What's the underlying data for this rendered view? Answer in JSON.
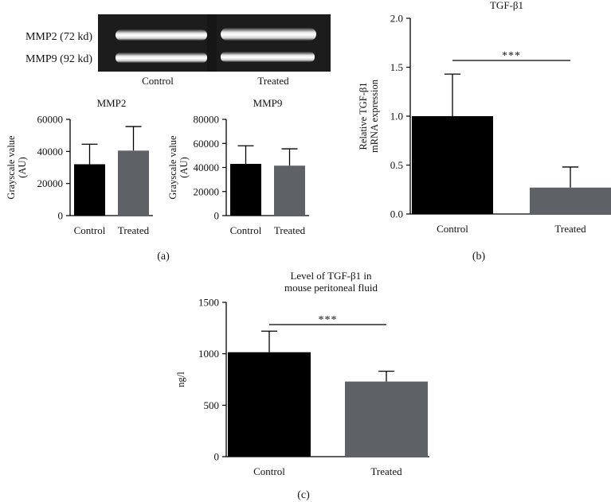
{
  "gel": {
    "band_labels": [
      "MMP2 (72 kd)",
      "MMP9 (92 kd)"
    ],
    "lane_labels": [
      "Control",
      "Treated"
    ]
  },
  "panel_labels": {
    "a": "(a)",
    "b": "(b)",
    "c": "(c)"
  },
  "colors": {
    "control": "#000000",
    "treated": "#5e6266",
    "axis": "#000000"
  },
  "chart_data": [
    {
      "id": "mmp2",
      "type": "bar",
      "title": "MMP2",
      "ylabel_lines": [
        "Grayscale value",
        "(AU)"
      ],
      "categories": [
        "Control",
        "Treated"
      ],
      "values": [
        32000,
        40500
      ],
      "errors": [
        12500,
        15000
      ],
      "ylim": [
        0,
        60000
      ],
      "yticks": [
        0,
        20000,
        40000,
        60000
      ],
      "significance": ""
    },
    {
      "id": "mmp9",
      "type": "bar",
      "title": "MMP9",
      "ylabel_lines": [
        "Grayscale value",
        "(AU)"
      ],
      "categories": [
        "Control",
        "Treated"
      ],
      "values": [
        43000,
        41500
      ],
      "errors": [
        15000,
        14000
      ],
      "ylim": [
        0,
        80000
      ],
      "yticks": [
        0,
        20000,
        40000,
        60000,
        80000
      ],
      "significance": ""
    },
    {
      "id": "tgf_mrna",
      "type": "bar",
      "title": "TGF-β1",
      "ylabel_lines": [
        "Relative TGF-β1",
        "mRNA expression"
      ],
      "categories": [
        "Control",
        "Treated"
      ],
      "values": [
        1.0,
        0.27
      ],
      "errors": [
        0.43,
        0.21
      ],
      "ylim": [
        0,
        2.0
      ],
      "yticks": [
        0.0,
        0.5,
        1.0,
        1.5,
        2.0
      ],
      "significance": "***"
    },
    {
      "id": "tgf_fluid",
      "type": "bar",
      "title_lines": [
        "Level of TGF-β1 in",
        "mouse peritoneal fluid"
      ],
      "ylabel_lines": [
        "ng/l"
      ],
      "categories": [
        "Control",
        "Treated"
      ],
      "values": [
        1015,
        730
      ],
      "errors": [
        205,
        100
      ],
      "ylim": [
        0,
        1500
      ],
      "yticks": [
        0,
        500,
        1000,
        1500
      ],
      "significance": "***"
    }
  ]
}
